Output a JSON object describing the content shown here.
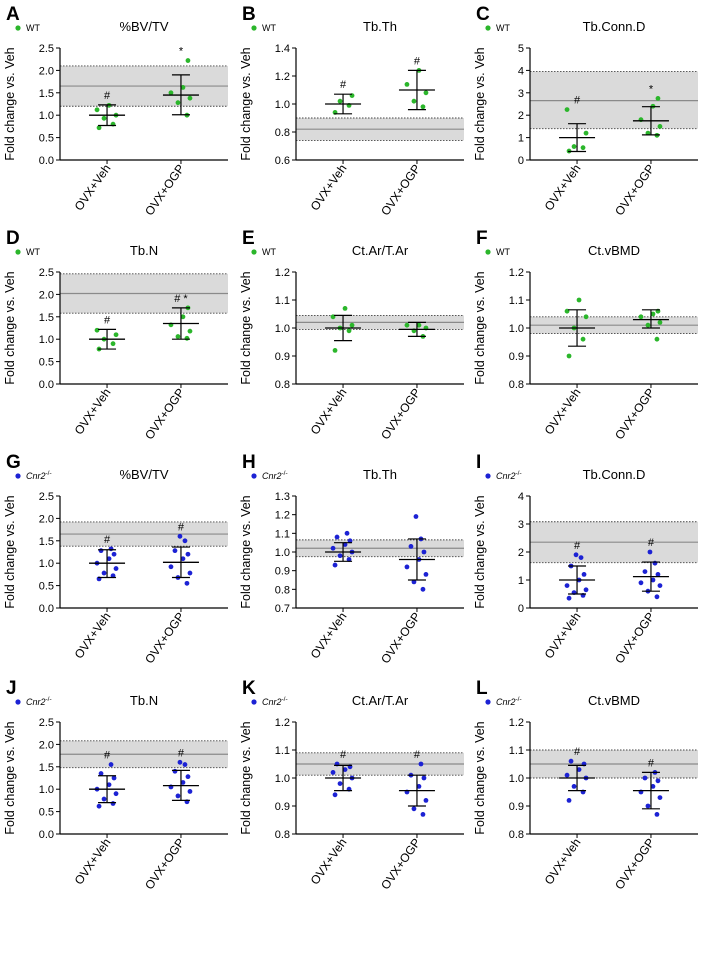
{
  "colors": {
    "wt": "#2bb62b",
    "cnr2": "#1c22d4",
    "band": "#dadada",
    "ref_line": "#8a8a8a"
  },
  "chart_data": [
    {
      "type": "scatter",
      "panel": "A",
      "title": "%BV/TV",
      "legend": "WT",
      "legend_sup": "",
      "color": "#2bb62b",
      "ylabel": "Fold change vs. Veh",
      "ylim": [
        0,
        2.5
      ],
      "yticks": [
        0.0,
        0.5,
        1.0,
        1.5,
        2.0,
        2.5
      ],
      "ytick_labels": [
        "0.0",
        "0.5",
        "1.0",
        "1.5",
        "2.0",
        "2.5"
      ],
      "categories": [
        "OVX+Veh",
        "OVX+OGP"
      ],
      "ref": {
        "mean": 1.65,
        "lower": 1.2,
        "upper": 2.1
      },
      "groups": [
        {
          "points": [
            0.72,
            0.8,
            0.93,
            1.0,
            1.12,
            1.22
          ],
          "mean": 1.0,
          "err": [
            0.77,
            1.23
          ],
          "mark": "#"
        },
        {
          "points": [
            1.0,
            1.28,
            1.38,
            1.5,
            1.62,
            2.22
          ],
          "mean": 1.45,
          "err": [
            1.01,
            1.9
          ],
          "mark": "*"
        }
      ]
    },
    {
      "type": "scatter",
      "panel": "B",
      "title": "Tb.Th",
      "legend": "WT",
      "legend_sup": "",
      "color": "#2bb62b",
      "ylabel": "Fold change vs. Veh",
      "ylim": [
        0.6,
        1.4
      ],
      "yticks": [
        0.6,
        0.8,
        1.0,
        1.2,
        1.4
      ],
      "ytick_labels": [
        "0.6",
        "0.8",
        "1.0",
        "1.2",
        "1.4"
      ],
      "categories": [
        "OVX+Veh",
        "OVX+OGP"
      ],
      "ref": {
        "mean": 0.82,
        "lower": 0.74,
        "upper": 0.9
      },
      "groups": [
        {
          "points": [
            0.94,
            0.99,
            1.02,
            1.06
          ],
          "mean": 1.0,
          "err": [
            0.93,
            1.07
          ],
          "mark": "#"
        },
        {
          "points": [
            0.98,
            1.02,
            1.08,
            1.14,
            1.24
          ],
          "mean": 1.1,
          "err": [
            0.96,
            1.24
          ],
          "mark": "#"
        }
      ]
    },
    {
      "type": "scatter",
      "panel": "C",
      "title": "Tb.Conn.D",
      "legend": "WT",
      "legend_sup": "",
      "color": "#2bb62b",
      "ylabel": "Fold change vs. Veh",
      "ylim": [
        0,
        5
      ],
      "yticks": [
        0,
        1,
        2,
        3,
        4,
        5
      ],
      "ytick_labels": [
        "0",
        "1",
        "2",
        "3",
        "4",
        "5"
      ],
      "categories": [
        "OVX+Veh",
        "OVX+OGP"
      ],
      "ref": {
        "mean": 2.65,
        "lower": 1.4,
        "upper": 3.95
      },
      "groups": [
        {
          "points": [
            0.4,
            0.55,
            0.6,
            1.2,
            2.25
          ],
          "mean": 1.0,
          "err": [
            0.38,
            1.62
          ],
          "mark": "#"
        },
        {
          "points": [
            1.1,
            1.2,
            1.5,
            1.8,
            2.4,
            2.75
          ],
          "mean": 1.75,
          "err": [
            1.12,
            2.38
          ],
          "mark": "*"
        }
      ]
    },
    {
      "type": "scatter",
      "panel": "D",
      "title": "Tb.N",
      "legend": "WT",
      "legend_sup": "",
      "color": "#2bb62b",
      "ylabel": "Fold change vs. Veh",
      "ylim": [
        0,
        2.5
      ],
      "yticks": [
        0.0,
        0.5,
        1.0,
        1.5,
        2.0,
        2.5
      ],
      "ytick_labels": [
        "0.0",
        "0.5",
        "1.0",
        "1.5",
        "2.0",
        "2.5"
      ],
      "categories": [
        "OVX+Veh",
        "OVX+OGP"
      ],
      "ref": {
        "mean": 2.02,
        "lower": 1.58,
        "upper": 2.46
      },
      "groups": [
        {
          "points": [
            0.78,
            0.9,
            1.0,
            1.1,
            1.2
          ],
          "mean": 1.0,
          "err": [
            0.78,
            1.22
          ],
          "mark": "#"
        },
        {
          "points": [
            1.02,
            1.06,
            1.18,
            1.32,
            1.5,
            1.7
          ],
          "mean": 1.35,
          "err": [
            1.0,
            1.7
          ],
          "mark": "# *"
        }
      ]
    },
    {
      "type": "scatter",
      "panel": "E",
      "title": "Ct.Ar/T.Ar",
      "legend": "WT",
      "legend_sup": "",
      "color": "#2bb62b",
      "ylabel": "Fold change vs. Veh",
      "ylim": [
        0.8,
        1.2
      ],
      "yticks": [
        0.8,
        0.9,
        1.0,
        1.1,
        1.2
      ],
      "ytick_labels": [
        "0.8",
        "0.9",
        "1.0",
        "1.1",
        "1.2"
      ],
      "categories": [
        "OVX+Veh",
        "OVX+OGP"
      ],
      "ref": {
        "mean": 1.02,
        "lower": 0.995,
        "upper": 1.045
      },
      "groups": [
        {
          "points": [
            0.92,
            0.99,
            1.0,
            1.01,
            1.04,
            1.07
          ],
          "mean": 1.0,
          "err": [
            0.955,
            1.045
          ],
          "mark": ""
        },
        {
          "points": [
            0.97,
            0.99,
            1.0,
            1.01,
            1.01
          ],
          "mean": 0.995,
          "err": [
            0.97,
            1.02
          ],
          "mark": ""
        }
      ]
    },
    {
      "type": "scatter",
      "panel": "F",
      "title": "Ct.vBMD",
      "legend": "WT",
      "legend_sup": "",
      "color": "#2bb62b",
      "ylabel": "Fold change vs. Veh",
      "ylim": [
        0.8,
        1.2
      ],
      "yticks": [
        0.8,
        0.9,
        1.0,
        1.1,
        1.2
      ],
      "ytick_labels": [
        "0.8",
        "0.9",
        "1.0",
        "1.1",
        "1.2"
      ],
      "categories": [
        "OVX+Veh",
        "OVX+OGP"
      ],
      "ref": {
        "mean": 1.01,
        "lower": 0.98,
        "upper": 1.04
      },
      "groups": [
        {
          "points": [
            0.9,
            0.96,
            1.0,
            1.04,
            1.06,
            1.1
          ],
          "mean": 1.0,
          "err": [
            0.935,
            1.065
          ],
          "mark": ""
        },
        {
          "points": [
            0.96,
            1.01,
            1.02,
            1.04,
            1.05,
            1.06
          ],
          "mean": 1.03,
          "err": [
            1.0,
            1.065
          ],
          "mark": ""
        }
      ]
    },
    {
      "type": "scatter",
      "panel": "G",
      "title": "%BV/TV",
      "legend": "Cnr2",
      "legend_sup": "-/-",
      "color": "#1c22d4",
      "ylabel": "Fold change vs. Veh",
      "ylim": [
        0,
        2.5
      ],
      "yticks": [
        0.0,
        0.5,
        1.0,
        1.5,
        2.0,
        2.5
      ],
      "ytick_labels": [
        "0.0",
        "0.5",
        "1.0",
        "1.5",
        "2.0",
        "2.5"
      ],
      "categories": [
        "OVX+Veh",
        "OVX+OGP"
      ],
      "ref": {
        "mean": 1.65,
        "lower": 1.38,
        "upper": 1.92
      },
      "groups": [
        {
          "points": [
            0.65,
            0.72,
            0.78,
            0.88,
            1.0,
            1.1,
            1.2,
            1.28,
            1.32
          ],
          "mean": 1.0,
          "err": [
            0.68,
            1.3
          ],
          "mark": "#"
        },
        {
          "points": [
            0.55,
            0.68,
            0.78,
            0.92,
            1.1,
            1.2,
            1.28,
            1.5,
            1.6
          ],
          "mean": 1.02,
          "err": [
            0.68,
            1.36
          ],
          "mark": "#"
        }
      ]
    },
    {
      "type": "scatter",
      "panel": "H",
      "title": "Tb.Th",
      "legend": "Cnr2",
      "legend_sup": "-/-",
      "color": "#1c22d4",
      "ylabel": "Fold change vs. Veh",
      "ylim": [
        0.7,
        1.3
      ],
      "yticks": [
        0.7,
        0.8,
        0.9,
        1.0,
        1.1,
        1.2,
        1.3
      ],
      "ytick_labels": [
        "0.7",
        "0.8",
        "0.9",
        "1.0",
        "1.1",
        "1.2",
        "1.3"
      ],
      "categories": [
        "OVX+Veh",
        "OVX+OGP"
      ],
      "ref": {
        "mean": 1.02,
        "lower": 0.975,
        "upper": 1.065
      },
      "groups": [
        {
          "points": [
            0.93,
            0.96,
            0.98,
            1.0,
            1.02,
            1.04,
            1.06,
            1.08,
            1.1
          ],
          "mean": 1.0,
          "err": [
            0.95,
            1.05
          ],
          "mark": ""
        },
        {
          "points": [
            0.8,
            0.84,
            0.88,
            0.92,
            0.96,
            1.0,
            1.03,
            1.07,
            1.19
          ],
          "mean": 0.96,
          "err": [
            0.85,
            1.07
          ],
          "mark": ""
        }
      ]
    },
    {
      "type": "scatter",
      "panel": "I",
      "title": "Tb.Conn.D",
      "legend": "Cnr2",
      "legend_sup": "-/-",
      "color": "#1c22d4",
      "ylabel": "Fold change vs. Veh",
      "ylim": [
        0,
        4
      ],
      "yticks": [
        0,
        1,
        2,
        3,
        4
      ],
      "ytick_labels": [
        "0",
        "1",
        "2",
        "3",
        "4"
      ],
      "categories": [
        "OVX+Veh",
        "OVX+OGP"
      ],
      "ref": {
        "mean": 2.35,
        "lower": 1.62,
        "upper": 3.08
      },
      "groups": [
        {
          "points": [
            0.35,
            0.45,
            0.55,
            0.65,
            0.8,
            1.0,
            1.2,
            1.5,
            1.8,
            1.9
          ],
          "mean": 1.0,
          "err": [
            0.5,
            1.5
          ],
          "mark": "#"
        },
        {
          "points": [
            0.4,
            0.6,
            0.8,
            0.9,
            1.0,
            1.2,
            1.3,
            1.6,
            2.0
          ],
          "mean": 1.12,
          "err": [
            0.6,
            1.64
          ],
          "mark": "#"
        }
      ]
    },
    {
      "type": "scatter",
      "panel": "J",
      "title": "Tb.N",
      "legend": "Cnr2",
      "legend_sup": "-/-",
      "color": "#1c22d4",
      "ylabel": "Fold change vs. Veh",
      "ylim": [
        0,
        2.5
      ],
      "yticks": [
        0.0,
        0.5,
        1.0,
        1.5,
        2.0,
        2.5
      ],
      "ytick_labels": [
        "0.0",
        "0.5",
        "1.0",
        "1.5",
        "2.0",
        "2.5"
      ],
      "categories": [
        "OVX+Veh",
        "OVX+OGP"
      ],
      "ref": {
        "mean": 1.78,
        "lower": 1.48,
        "upper": 2.08
      },
      "groups": [
        {
          "points": [
            0.62,
            0.68,
            0.78,
            0.9,
            1.0,
            1.1,
            1.25,
            1.35,
            1.55
          ],
          "mean": 1.0,
          "err": [
            0.7,
            1.3
          ],
          "mark": "#"
        },
        {
          "points": [
            0.72,
            0.85,
            0.95,
            1.05,
            1.15,
            1.28,
            1.4,
            1.55,
            1.6
          ],
          "mean": 1.08,
          "err": [
            0.75,
            1.42
          ],
          "mark": "#"
        }
      ]
    },
    {
      "type": "scatter",
      "panel": "K",
      "title": "Ct.Ar/T.Ar",
      "legend": "Cnr2",
      "legend_sup": "-/-",
      "color": "#1c22d4",
      "ylabel": "Fold change vs. Veh",
      "ylim": [
        0.8,
        1.2
      ],
      "yticks": [
        0.8,
        0.9,
        1.0,
        1.1,
        1.2
      ],
      "ytick_labels": [
        "0.8",
        "0.9",
        "1.0",
        "1.1",
        "1.2"
      ],
      "categories": [
        "OVX+Veh",
        "OVX+OGP"
      ],
      "ref": {
        "mean": 1.05,
        "lower": 1.01,
        "upper": 1.09
      },
      "groups": [
        {
          "points": [
            0.94,
            0.96,
            0.98,
            1.0,
            1.02,
            1.03,
            1.04,
            1.05
          ],
          "mean": 1.0,
          "err": [
            0.955,
            1.045
          ],
          "mark": "#"
        },
        {
          "points": [
            0.87,
            0.89,
            0.92,
            0.95,
            0.97,
            1.0,
            1.01,
            1.05
          ],
          "mean": 0.955,
          "err": [
            0.9,
            1.01
          ],
          "mark": "#"
        }
      ]
    },
    {
      "type": "scatter",
      "panel": "L",
      "title": "Ct.vBMD",
      "legend": "Cnr2",
      "legend_sup": "-/-",
      "color": "#1c22d4",
      "ylabel": "Fold change vs. Veh",
      "ylim": [
        0.8,
        1.2
      ],
      "yticks": [
        0.8,
        0.9,
        1.0,
        1.1,
        1.2
      ],
      "ytick_labels": [
        "0.8",
        "0.9",
        "1.0",
        "1.1",
        "1.2"
      ],
      "categories": [
        "OVX+Veh",
        "OVX+OGP"
      ],
      "ref": {
        "mean": 1.05,
        "lower": 1.0,
        "upper": 1.1
      },
      "groups": [
        {
          "points": [
            0.92,
            0.95,
            0.97,
            1.0,
            1.01,
            1.03,
            1.05,
            1.06
          ],
          "mean": 1.0,
          "err": [
            0.955,
            1.045
          ],
          "mark": "#"
        },
        {
          "points": [
            0.87,
            0.9,
            0.93,
            0.95,
            0.97,
            0.99,
            1.0,
            1.02
          ],
          "mean": 0.955,
          "err": [
            0.89,
            1.02
          ],
          "mark": "#"
        }
      ]
    }
  ]
}
